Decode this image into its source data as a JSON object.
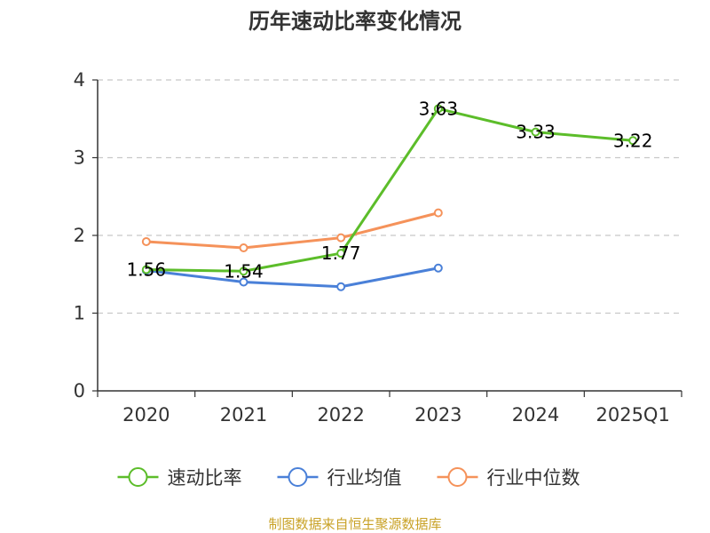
{
  "chart_data": {
    "type": "line",
    "title": "历年速动比率变化情况",
    "categories": [
      "2020",
      "2021",
      "2022",
      "2023",
      "2024",
      "2025Q1"
    ],
    "ylim": [
      0,
      4
    ],
    "yticks": [
      "0",
      "1",
      "2",
      "3",
      "4"
    ],
    "grid": true,
    "legend_position": "bottom",
    "series": [
      {
        "name": "速动比率",
        "color": "#5cbd2a",
        "values": [
          1.56,
          1.54,
          1.77,
          3.63,
          3.33,
          3.22
        ],
        "show_labels": true
      },
      {
        "name": "行业均值",
        "color": "#4a80d8",
        "values": [
          1.55,
          1.4,
          1.34,
          1.58,
          null,
          null
        ],
        "show_labels": false
      },
      {
        "name": "行业中位数",
        "color": "#f5925a",
        "values": [
          1.92,
          1.84,
          1.97,
          2.29,
          null,
          null
        ],
        "show_labels": false
      }
    ]
  },
  "source_text": "制图数据来自恒生聚源数据库"
}
